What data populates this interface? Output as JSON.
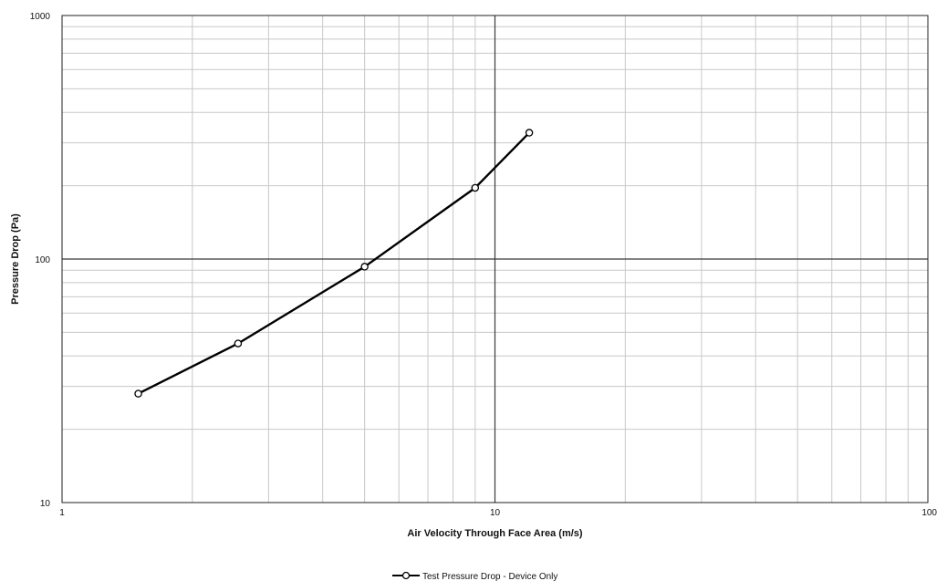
{
  "chart_data": {
    "type": "line",
    "title": "",
    "xlabel": "Air Velocity  Through Face Area (m/s)",
    "ylabel": "Pressure Drop (Pa)",
    "xscale": "log",
    "yscale": "log",
    "xlim": [
      1,
      100
    ],
    "ylim": [
      10,
      1000
    ],
    "x_tick_labels": [
      "1",
      "10",
      "100"
    ],
    "y_tick_labels": [
      "10",
      "100",
      "1000"
    ],
    "grid": true,
    "legend_position": "bottom-center",
    "series": [
      {
        "name": "Test Pressure Drop - Device Only",
        "color": "#000000",
        "marker": "open-circle",
        "points": [
          {
            "x": 1.5,
            "y": 28
          },
          {
            "x": 2.55,
            "y": 45
          },
          {
            "x": 5.0,
            "y": 93
          },
          {
            "x": 9.0,
            "y": 196
          },
          {
            "x": 12.0,
            "y": 330
          }
        ]
      }
    ]
  }
}
